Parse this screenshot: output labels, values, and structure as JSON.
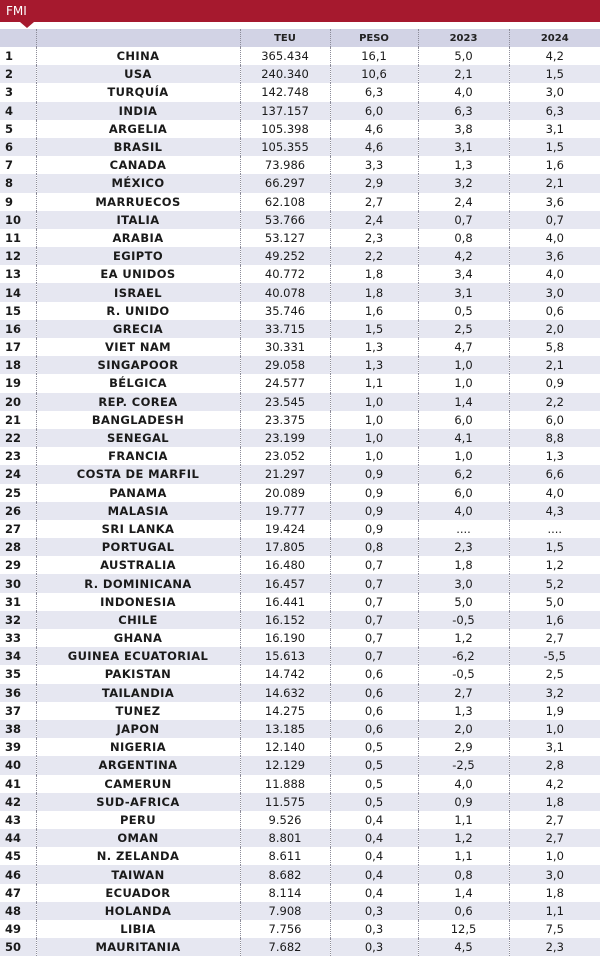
{
  "banner": {
    "label": "FMI"
  },
  "table": {
    "headers": [
      "",
      "",
      "TEU",
      "PESO",
      "2023",
      "2024"
    ],
    "rows": [
      [
        "1",
        "CHINA",
        "365.434",
        "16,1",
        "5,0",
        "4,2"
      ],
      [
        "2",
        "USA",
        "240.340",
        "10,6",
        "2,1",
        "1,5"
      ],
      [
        "3",
        "TURQUÍA",
        "142.748",
        "6,3",
        "4,0",
        "3,0"
      ],
      [
        "4",
        "INDIA",
        "137.157",
        "6,0",
        "6,3",
        "6,3"
      ],
      [
        "5",
        "ARGELIA",
        "105.398",
        "4,6",
        "3,8",
        "3,1"
      ],
      [
        "6",
        "BRASIL",
        "105.355",
        "4,6",
        "3,1",
        "1,5"
      ],
      [
        "7",
        "CANADA",
        "73.986",
        "3,3",
        "1,3",
        "1,6"
      ],
      [
        "8",
        "MÉXICO",
        "66.297",
        "2,9",
        "3,2",
        "2,1"
      ],
      [
        "9",
        "MARRUECOS",
        "62.108",
        "2,7",
        "2,4",
        "3,6"
      ],
      [
        "10",
        "ITALIA",
        "53.766",
        "2,4",
        "0,7",
        "0,7"
      ],
      [
        "11",
        "ARABIA",
        "53.127",
        "2,3",
        "0,8",
        "4,0"
      ],
      [
        "12",
        "EGIPTO",
        "49.252",
        "2,2",
        "4,2",
        "3,6"
      ],
      [
        "13",
        "EA UNIDOS",
        "40.772",
        "1,8",
        "3,4",
        "4,0"
      ],
      [
        "14",
        "ISRAEL",
        "40.078",
        "1,8",
        "3,1",
        "3,0"
      ],
      [
        "15",
        "R. UNIDO",
        "35.746",
        "1,6",
        "0,5",
        "0,6"
      ],
      [
        "16",
        "GRECIA",
        "33.715",
        "1,5",
        "2,5",
        "2,0"
      ],
      [
        "17",
        "VIET NAM",
        "30.331",
        "1,3",
        "4,7",
        "5,8"
      ],
      [
        "18",
        "SINGAPOOR",
        "29.058",
        "1,3",
        "1,0",
        "2,1"
      ],
      [
        "19",
        "BÉLGICA",
        "24.577",
        "1,1",
        "1,0",
        "0,9"
      ],
      [
        "20",
        "REP. COREA",
        "23.545",
        "1,0",
        "1,4",
        "2,2"
      ],
      [
        "21",
        "BANGLADESH",
        "23.375",
        "1,0",
        "6,0",
        "6,0"
      ],
      [
        "22",
        "SENEGAL",
        "23.199",
        "1,0",
        "4,1",
        "8,8"
      ],
      [
        "23",
        "FRANCIA",
        "23.052",
        "1,0",
        "1,0",
        "1,3"
      ],
      [
        "24",
        "COSTA DE MARFIL",
        "21.297",
        "0,9",
        "6,2",
        "6,6"
      ],
      [
        "25",
        "PANAMA",
        "20.089",
        "0,9",
        "6,0",
        "4,0"
      ],
      [
        "26",
        "MALASIA",
        "19.777",
        "0,9",
        "4,0",
        "4,3"
      ],
      [
        "27",
        "SRI LANKA",
        "19.424",
        "0,9",
        "....",
        "...."
      ],
      [
        "28",
        "PORTUGAL",
        "17.805",
        "0,8",
        "2,3",
        "1,5"
      ],
      [
        "29",
        "AUSTRALIA",
        "16.480",
        "0,7",
        "1,8",
        "1,2"
      ],
      [
        "30",
        "R. DOMINICANA",
        "16.457",
        "0,7",
        "3,0",
        "5,2"
      ],
      [
        "31",
        "INDONESIA",
        "16.441",
        "0,7",
        "5,0",
        "5,0"
      ],
      [
        "32",
        "CHILE",
        "16.152",
        "0,7",
        "-0,5",
        "1,6"
      ],
      [
        "33",
        "GHANA",
        "16.190",
        "0,7",
        "1,2",
        "2,7"
      ],
      [
        "34",
        "GUINEA ECUATORIAL",
        "15.613",
        "0,7",
        "-6,2",
        "-5,5"
      ],
      [
        "35",
        "PAKISTAN",
        "14.742",
        "0,6",
        "-0,5",
        "2,5"
      ],
      [
        "36",
        "TAILANDIA",
        "14.632",
        "0,6",
        "2,7",
        "3,2"
      ],
      [
        "37",
        "TUNEZ",
        "14.275",
        "0,6",
        "1,3",
        "1,9"
      ],
      [
        "38",
        "JAPON",
        "13.185",
        "0,6",
        "2,0",
        "1,0"
      ],
      [
        "39",
        "NIGERIA",
        "12.140",
        "0,5",
        "2,9",
        "3,1"
      ],
      [
        "40",
        "ARGENTINA",
        "12.129",
        "0,5",
        "-2,5",
        "2,8"
      ],
      [
        "41",
        "CAMERUN",
        "11.888",
        "0,5",
        "4,0",
        "4,2"
      ],
      [
        "42",
        "SUD-AFRICA",
        "11.575",
        "0,5",
        "0,9",
        "1,8"
      ],
      [
        "43",
        "PERU",
        "9.526",
        "0,4",
        "1,1",
        "2,7"
      ],
      [
        "44",
        "OMAN",
        "8.801",
        "0,4",
        "1,2",
        "2,7"
      ],
      [
        "45",
        "N. ZELANDA",
        "8.611",
        "0,4",
        "1,1",
        "1,0"
      ],
      [
        "46",
        "TAIWAN",
        "8.682",
        "0,4",
        "0,8",
        "3,0"
      ],
      [
        "47",
        "ECUADOR",
        "8.114",
        "0,4",
        "1,4",
        "1,8"
      ],
      [
        "48",
        "HOLANDA",
        "7.908",
        "0,3",
        "0,6",
        "1,1"
      ],
      [
        "49",
        "LIBIA",
        "7.756",
        "0,3",
        "12,5",
        "7,5"
      ],
      [
        "50",
        "MAURITANIA",
        "7.682",
        "0,3",
        "4,5",
        "2,3"
      ]
    ]
  },
  "colors": {
    "banner": "#a6192e",
    "header_band": "#d2d3e5",
    "row_stripe": "#e6e7f1"
  }
}
